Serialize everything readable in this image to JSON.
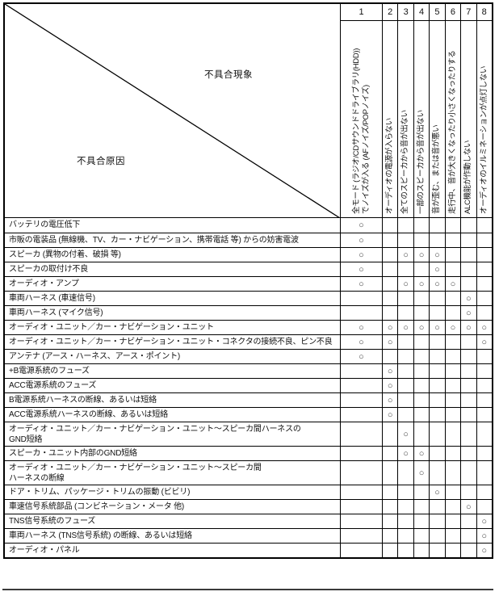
{
  "matrix": {
    "corner": {
      "phenomenon": "不具合現象",
      "cause": "不具合原因"
    },
    "mark_symbol": "○",
    "columns": [
      {
        "num": "1",
        "lines": [
          "全モード (ラジオ/CDサウンドドライブラリ(HDD))",
          "でノイズが入る (AFノイズ/POPノイズ)"
        ]
      },
      {
        "num": "2",
        "lines": [
          "オーディオの電源が入らない"
        ]
      },
      {
        "num": "3",
        "lines": [
          "全てのスピーカから音が出ない"
        ]
      },
      {
        "num": "4",
        "lines": [
          "一部のスピーカから音が出ない"
        ]
      },
      {
        "num": "5",
        "lines": [
          "音が歪む、または音が悪い"
        ]
      },
      {
        "num": "6",
        "lines": [
          "走行中、音が大きくなったり小さくなったりする"
        ]
      },
      {
        "num": "7",
        "lines": [
          "ALC機能が作動しない"
        ]
      },
      {
        "num": "8",
        "lines": [
          "オーディオのイルミネーションが点灯しない"
        ]
      }
    ],
    "rows": [
      {
        "lines": [
          "バッテリの電圧低下"
        ],
        "marks": [
          1
        ]
      },
      {
        "lines": [
          "市販の電装品 (無線機、TV、カー・ナビゲーション、携帯電話 等) からの妨害電波"
        ],
        "marks": [
          1
        ]
      },
      {
        "lines": [
          "スピーカ (異物の付着、破損 等)"
        ],
        "marks": [
          1,
          3,
          4,
          5
        ]
      },
      {
        "lines": [
          "スピーカの取付け不良"
        ],
        "marks": [
          1,
          5
        ]
      },
      {
        "lines": [
          "オーディオ・アンプ"
        ],
        "marks": [
          1,
          3,
          4,
          5,
          6
        ]
      },
      {
        "lines": [
          "車両ハーネス (車速信号)"
        ],
        "marks": [
          7
        ]
      },
      {
        "lines": [
          "車両ハーネス (マイク信号)"
        ],
        "marks": [
          7
        ]
      },
      {
        "lines": [
          "オーディオ・ユニット／カー・ナビゲーション・ユニット"
        ],
        "marks": [
          1,
          2,
          3,
          4,
          5,
          6,
          7,
          8
        ]
      },
      {
        "lines": [
          "オーディオ・ユニット／カー・ナビゲーション・ユニット・コネクタの接続不良、ピン不良"
        ],
        "marks": [
          1,
          2,
          8
        ]
      },
      {
        "lines": [
          "アンテナ (アース・ハーネス、アース・ポイント)"
        ],
        "marks": [
          1
        ]
      },
      {
        "lines": [
          "+B電源系統のフューズ"
        ],
        "marks": [
          2
        ]
      },
      {
        "lines": [
          "ACC電源系統のフューズ"
        ],
        "marks": [
          2
        ]
      },
      {
        "lines": [
          "B電源系統ハーネスの断線、あるいは短絡"
        ],
        "marks": [
          2
        ]
      },
      {
        "lines": [
          "ACC電源系統ハーネスの断線、あるいは短絡"
        ],
        "marks": [
          2
        ]
      },
      {
        "lines": [
          "オーディオ・ユニット／カー・ナビゲーション・ユニット〜スピーカ間ハーネスの",
          "GND短絡"
        ],
        "marks": [
          3
        ]
      },
      {
        "lines": [
          "スピーカ・ユニット内部のGND短絡"
        ],
        "marks": [
          3,
          4
        ]
      },
      {
        "lines": [
          "オーディオ・ユニット／カー・ナビゲーション・ユニット〜スピーカ間",
          "ハーネスの断線"
        ],
        "marks": [
          4
        ]
      },
      {
        "lines": [
          "ドア・トリム、パッケージ・トリムの振動 (ビビリ)"
        ],
        "marks": [
          5
        ]
      },
      {
        "lines": [
          "車速信号系統部品 (コンビネーション・メータ 他)"
        ],
        "marks": [
          7
        ]
      },
      {
        "lines": [
          "TNS信号系統のフューズ"
        ],
        "marks": [
          8
        ]
      },
      {
        "lines": [
          "車両ハーネス (TNS信号系統) の断線、あるいは短絡"
        ],
        "marks": [
          8
        ]
      },
      {
        "lines": [
          "オーディオ・パネル"
        ],
        "marks": [
          8
        ]
      }
    ]
  }
}
